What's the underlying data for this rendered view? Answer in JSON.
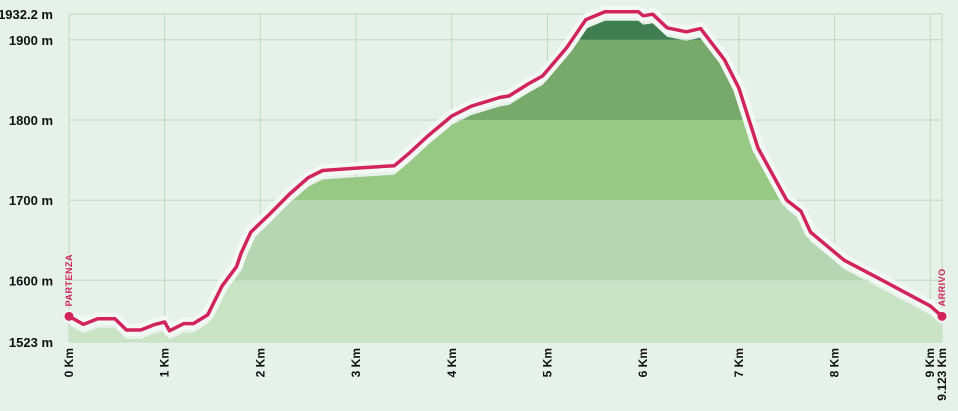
{
  "chart_data": {
    "type": "area",
    "title": "",
    "xlabel": "",
    "ylabel": "",
    "x_unit": "Km",
    "y_unit": "m",
    "xlim": [
      0,
      9.123
    ],
    "ylim": [
      1523,
      1932.2
    ],
    "y_ticks": [
      {
        "value": 1523,
        "label": "1523 m"
      },
      {
        "value": 1600,
        "label": "1600 m"
      },
      {
        "value": 1700,
        "label": "1700 m"
      },
      {
        "value": 1800,
        "label": "1800 m"
      },
      {
        "value": 1900,
        "label": "1900 m"
      },
      {
        "value": 1932.2,
        "label": "1932.2 m"
      }
    ],
    "x_ticks": [
      {
        "value": 0,
        "label": "0 Km"
      },
      {
        "value": 1,
        "label": "1 Km"
      },
      {
        "value": 2,
        "label": "2 Km"
      },
      {
        "value": 3,
        "label": "3 Km"
      },
      {
        "value": 4,
        "label": "4 Km"
      },
      {
        "value": 5,
        "label": "5 Km"
      },
      {
        "value": 6,
        "label": "6 Km"
      },
      {
        "value": 7,
        "label": "7 Km"
      },
      {
        "value": 8,
        "label": "8 Km"
      },
      {
        "value": 9,
        "label": "9 Km"
      },
      {
        "value": 9.123,
        "label": "9.123 Km"
      }
    ],
    "series": [
      {
        "name": "",
        "color": "#d0245a",
        "x": [
          0,
          0.15,
          0.3,
          0.48,
          0.6,
          0.75,
          0.9,
          1.0,
          1.05,
          1.2,
          1.3,
          1.45,
          1.6,
          1.75,
          1.8,
          1.9,
          2.1,
          2.3,
          2.5,
          2.65,
          3.0,
          3.4,
          3.55,
          3.75,
          4.0,
          4.2,
          4.5,
          4.6,
          4.8,
          4.95,
          5.2,
          5.4,
          5.6,
          5.75,
          5.95,
          6.0,
          6.1,
          6.25,
          6.45,
          6.6,
          6.85,
          7.0,
          7.2,
          7.5,
          7.65,
          7.75,
          8.1,
          8.5,
          9.0,
          9.123
        ],
        "y": [
          1555,
          1545,
          1552,
          1552,
          1538,
          1538,
          1545,
          1548,
          1537,
          1546,
          1546,
          1557,
          1593,
          1617,
          1634,
          1660,
          1683,
          1707,
          1728,
          1737,
          1740,
          1743,
          1758,
          1780,
          1805,
          1817,
          1828,
          1830,
          1845,
          1855,
          1890,
          1925,
          1935,
          1935,
          1935,
          1930,
          1932,
          1915,
          1910,
          1914,
          1875,
          1840,
          1765,
          1700,
          1686,
          1660,
          1625,
          1600,
          1568,
          1555
        ]
      }
    ],
    "terrain_bands": [
      {
        "from": 1523,
        "to": 1600,
        "color": "#c9e3c5"
      },
      {
        "from": 1600,
        "to": 1700,
        "color": "#b4d7b1"
      },
      {
        "from": 1700,
        "to": 1800,
        "color": "#97c985"
      },
      {
        "from": 1800,
        "to": 1900,
        "color": "#77a96b"
      },
      {
        "from": 1900,
        "to": 1932.2,
        "color": "#3f7e4f"
      }
    ],
    "start_label": "PARTENZA",
    "end_label": "ARRIVO",
    "background": "#e6f1ea",
    "gridline_color": "#bfd7c7"
  }
}
